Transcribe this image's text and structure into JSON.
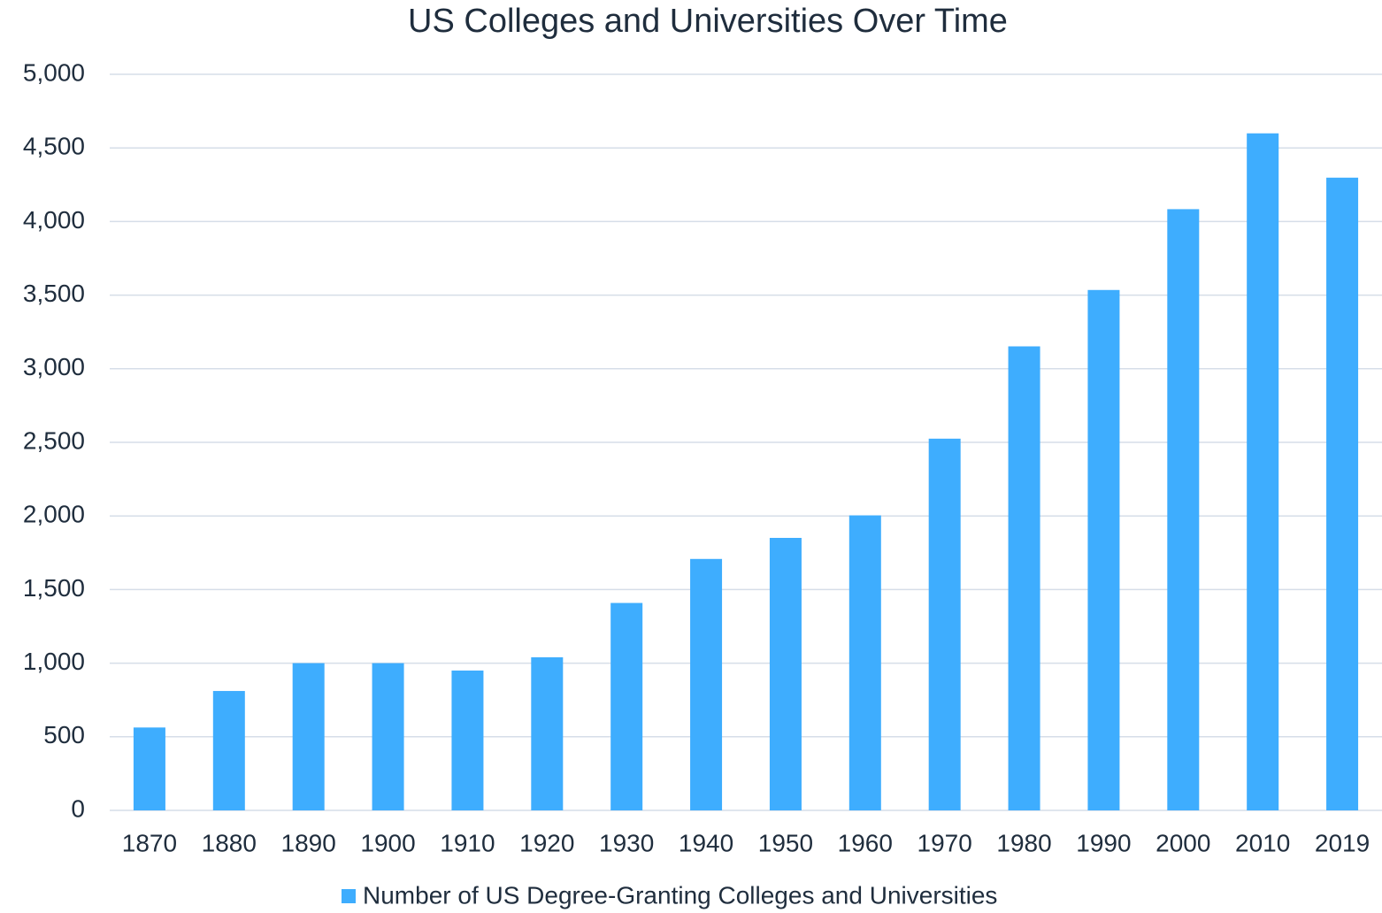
{
  "chart_data": {
    "type": "bar",
    "title": "US Colleges and Universities Over Time",
    "categories": [
      "1870",
      "1880",
      "1890",
      "1900",
      "1910",
      "1920",
      "1930",
      "1940",
      "1950",
      "1960",
      "1970",
      "1980",
      "1990",
      "2000",
      "2010",
      "2019"
    ],
    "series": [
      {
        "name": "Number of US Degree-Granting Colleges and Universities",
        "color": "#3eadfe",
        "values": [
          563,
          811,
          1000,
          1000,
          950,
          1040,
          1409,
          1708,
          1851,
          2004,
          2525,
          3152,
          3535,
          4084,
          4599,
          4298
        ]
      }
    ],
    "ylim": [
      0,
      5000
    ],
    "yticks": [
      0,
      500,
      {
        "value": 1000,
        "label": "1,000"
      },
      {
        "value": 1500,
        "label": "1,500"
      },
      {
        "value": 2000,
        "label": "2,000"
      },
      {
        "value": 2500,
        "label": "2,500"
      },
      {
        "value": 3000,
        "label": "3,000"
      },
      {
        "value": 3500,
        "label": "3,500"
      },
      {
        "value": 4000,
        "label": "4,000"
      },
      {
        "value": 4500,
        "label": "4,500"
      },
      {
        "value": 5000,
        "label": "5,000"
      }
    ],
    "grid": true,
    "legend": "bottom"
  }
}
